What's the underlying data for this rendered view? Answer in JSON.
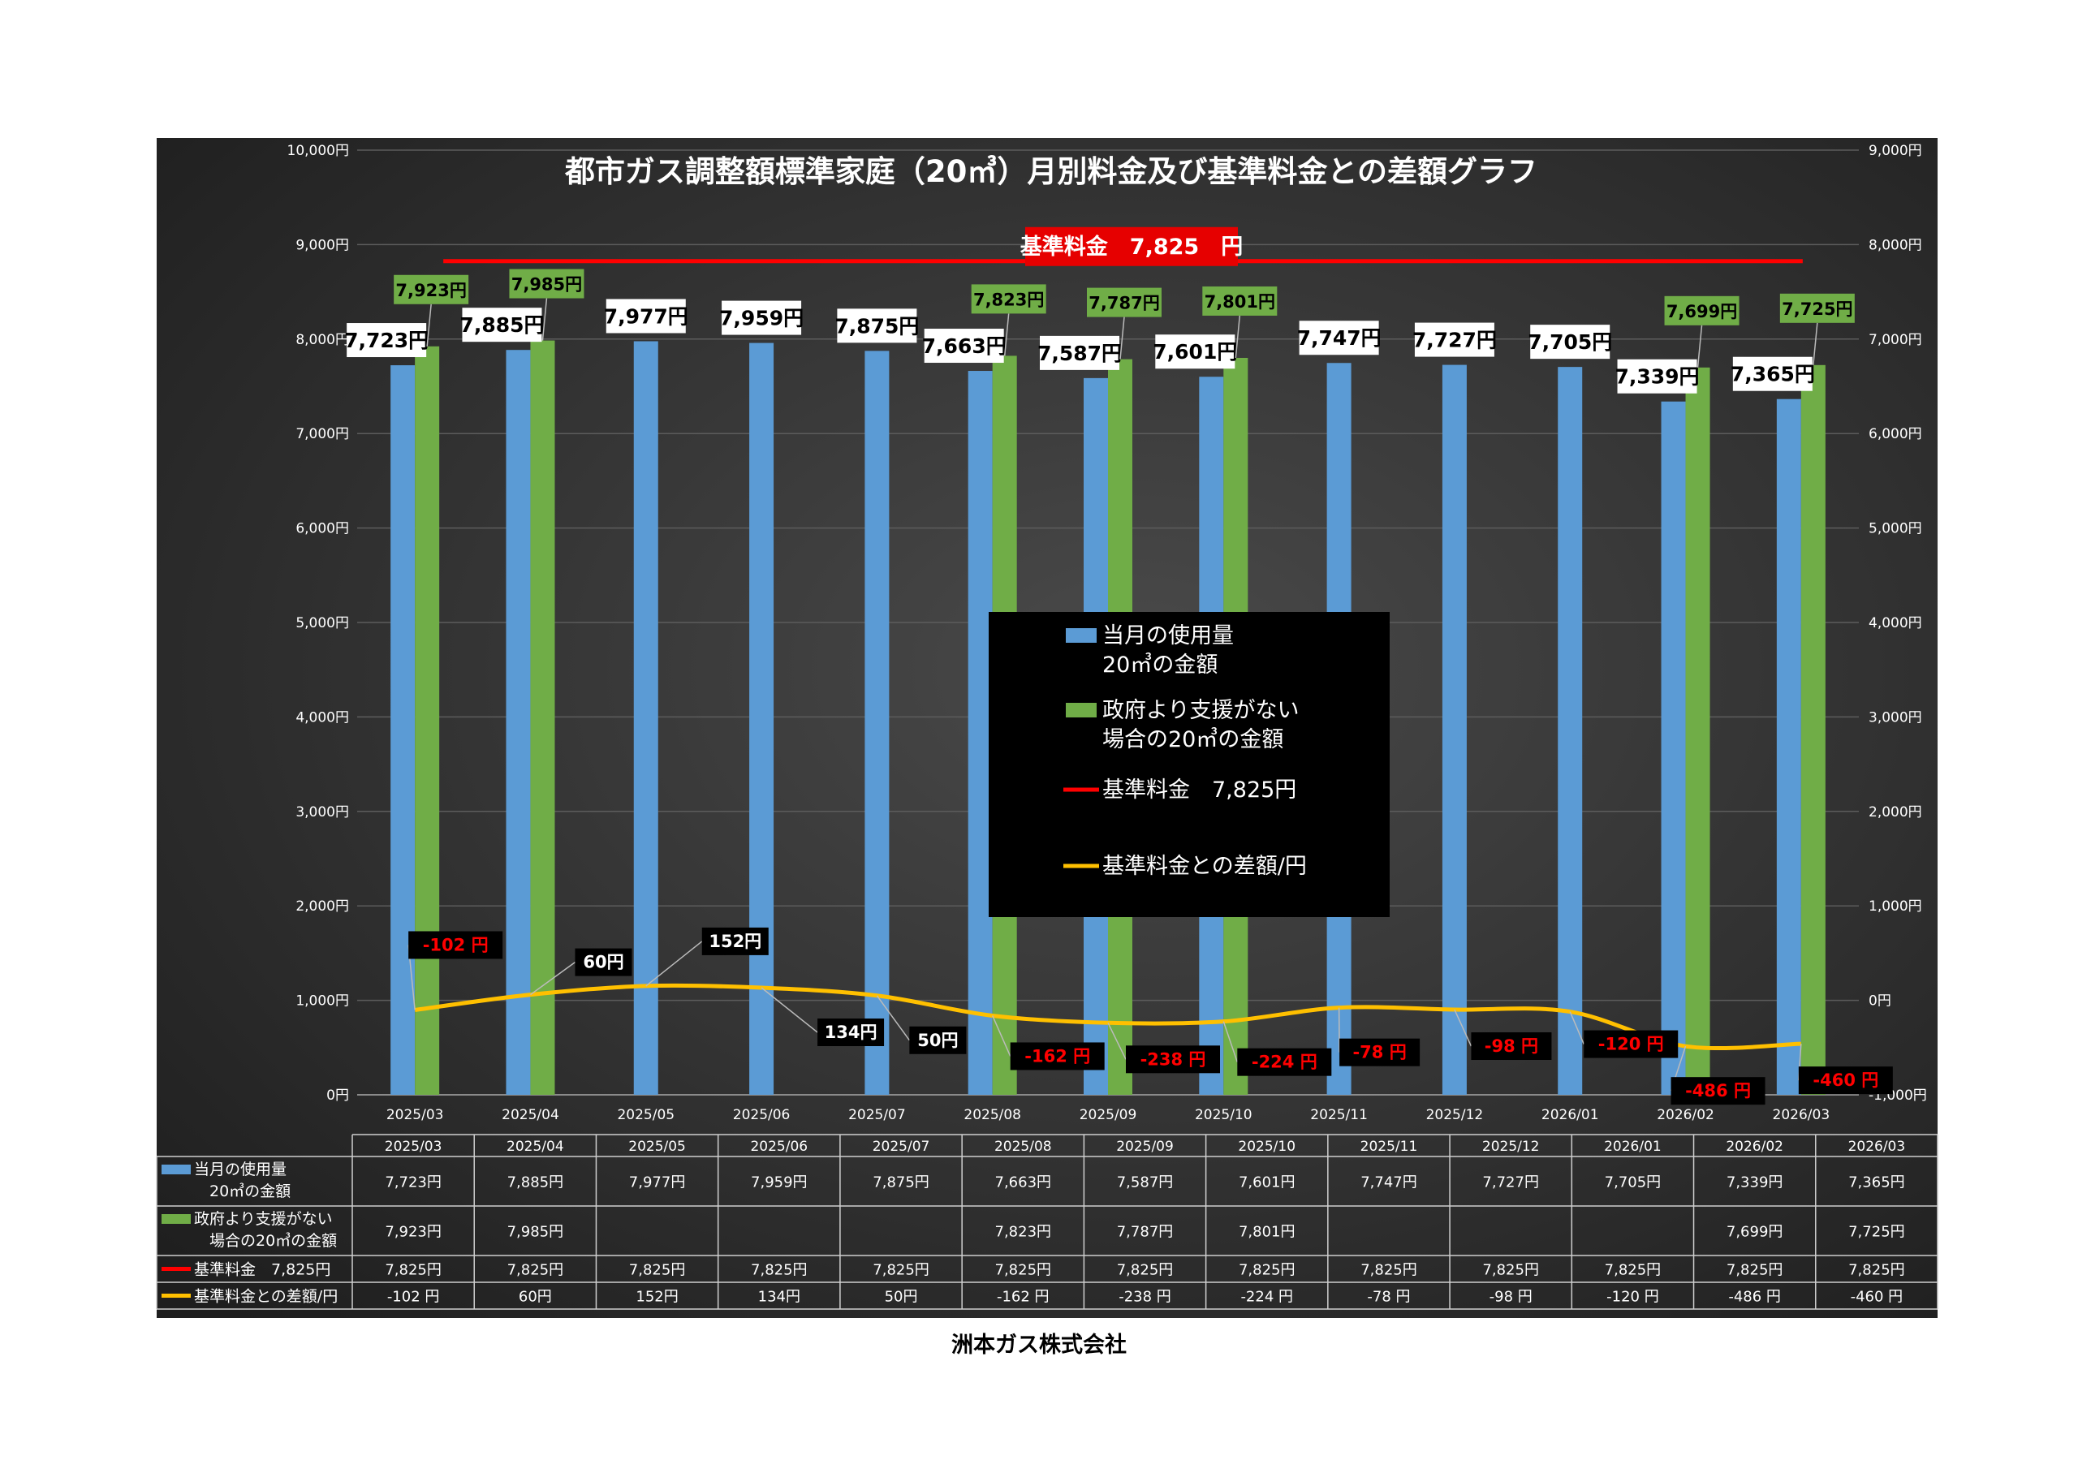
{
  "chart_data": {
    "type": "bar",
    "title": "都市ガス調整額標準家庭（20㎥）月別料金及び基準料金との差額グラフ",
    "categories": [
      "2025/03",
      "2025/04",
      "2025/05",
      "2025/06",
      "2025/07",
      "2025/08",
      "2025/09",
      "2025/10",
      "2025/11",
      "2025/12",
      "2026/01",
      "2026/02",
      "2026/03"
    ],
    "series": [
      {
        "name": "当月の使用量\n20㎥の金額",
        "type": "bar",
        "axis": "left",
        "color": "#5b9bd5",
        "values": [
          7723,
          7885,
          7977,
          7959,
          7875,
          7663,
          7587,
          7601,
          7747,
          7727,
          7705,
          7339,
          7365
        ],
        "labels": [
          "7,723円",
          "7,885円",
          "7,977円",
          "7,959円",
          "7,875円",
          "7,663円",
          "7,587円",
          "7,601円",
          "7,747円",
          "7,727円",
          "7,705円",
          "7,339円",
          "7,365円"
        ]
      },
      {
        "name": "政府より支援がない\n場合の20㎥の金額",
        "type": "bar",
        "axis": "left",
        "color": "#70ad47",
        "values": [
          7923,
          7985,
          null,
          null,
          null,
          7823,
          7787,
          7801,
          null,
          null,
          null,
          7699,
          7725
        ],
        "labels": [
          "7,923円",
          "7,985円",
          "",
          "",
          "",
          "7,823円",
          "7,787円",
          "7,801円",
          "",
          "",
          "",
          "7,699円",
          "7,725円"
        ]
      },
      {
        "name": "基準料金　7,825円",
        "type": "line",
        "axis": "right",
        "color": "#ff0000",
        "values": [
          7825,
          7825,
          7825,
          7825,
          7825,
          7825,
          7825,
          7825,
          7825,
          7825,
          7825,
          7825,
          7825
        ]
      },
      {
        "name": "基準料金との差額/円",
        "type": "line",
        "axis": "right",
        "color": "#ffc000",
        "values": [
          -102,
          60,
          152,
          134,
          50,
          -162,
          -238,
          -224,
          -78,
          -98,
          -120,
          -486,
          -460
        ],
        "labels": [
          "-102 円",
          "60円",
          "152円",
          "134円",
          "50円",
          "-162 円",
          "-238 円",
          "-224 円",
          "-78 円",
          "-98 円",
          "-120 円",
          "-486 円",
          "-460 円"
        ]
      }
    ],
    "y_left": {
      "min": 0,
      "max": 10000,
      "ticks": [
        "0円",
        "1,000円",
        "2,000円",
        "3,000円",
        "4,000円",
        "5,000円",
        "6,000円",
        "7,000円",
        "8,000円",
        "9,000円",
        "10,000円"
      ]
    },
    "y_right": {
      "min": -1000,
      "max": 9000,
      "ticks": [
        "-1,000円",
        "0円",
        "1,000円",
        "2,000円",
        "3,000円",
        "4,000円",
        "5,000円",
        "6,000円",
        "7,000円",
        "8,000円",
        "9,000円"
      ]
    },
    "reference_label": "基準料金　7,825　円",
    "legend": {
      "position": "center",
      "items": [
        "当月の使用量\n20㎥の金額",
        "政府より支援がない\n場合の20㎥の金額",
        "基準料金　7,825円",
        "基準料金との差額/円"
      ]
    },
    "grid": true
  },
  "table": {
    "headers": [
      "2025/03",
      "2025/04",
      "2025/05",
      "2025/06",
      "2025/07",
      "2025/08",
      "2025/09",
      "2025/10",
      "2025/11",
      "2025/12",
      "2026/01",
      "2026/02",
      "2026/03"
    ],
    "rows": [
      {
        "label": "当月の使用量\n　20㎥の金額",
        "color": "#5b9bd5",
        "kind": "bar",
        "cells": [
          "7,723円",
          "7,885円",
          "7,977円",
          "7,959円",
          "7,875円",
          "7,663円",
          "7,587円",
          "7,601円",
          "7,747円",
          "7,727円",
          "7,705円",
          "7,339円",
          "7,365円"
        ]
      },
      {
        "label": "政府より支援がない\n　場合の20㎥の金額",
        "color": "#70ad47",
        "kind": "bar",
        "cells": [
          "7,923円",
          "7,985円",
          "",
          "",
          "",
          "7,823円",
          "7,787円",
          "7,801円",
          "",
          "",
          "",
          "7,699円",
          "7,725円"
        ]
      },
      {
        "label": "基準料金　7,825円",
        "color": "#ff0000",
        "kind": "line",
        "cells": [
          "7,825円",
          "7,825円",
          "7,825円",
          "7,825円",
          "7,825円",
          "7,825円",
          "7,825円",
          "7,825円",
          "7,825円",
          "7,825円",
          "7,825円",
          "7,825円",
          "7,825円"
        ]
      },
      {
        "label": "基準料金との差額/円",
        "color": "#ffc000",
        "kind": "line",
        "cells": [
          "-102 円",
          "60円",
          "152円",
          "134円",
          "50円",
          "-162 円",
          "-238 円",
          "-224 円",
          "-78 円",
          "-98 円",
          "-120 円",
          "-486 円",
          "-460 円"
        ]
      }
    ]
  },
  "footer": "洲本ガス株式会社",
  "colors": {
    "bg_dark": "#1e1e1e",
    "bg_light": "#4a4a4a",
    "text": "#ffffff",
    "negative": "#ff0000"
  }
}
